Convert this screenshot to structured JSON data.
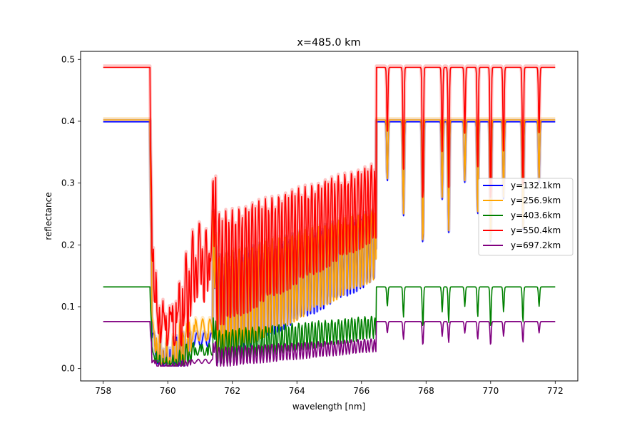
{
  "chart_data": {
    "type": "line",
    "title": "x=485.0 km",
    "xlabel": "wavelength [nm]",
    "ylabel": "reflectance",
    "xlim": [
      757.3,
      772.7
    ],
    "ylim": [
      -0.02,
      0.513
    ],
    "xticks": [
      758,
      760,
      762,
      764,
      766,
      768,
      770,
      772
    ],
    "yticks": [
      0.0,
      0.1,
      0.2,
      0.3,
      0.4,
      0.5
    ],
    "xtick_labels": [
      "758",
      "760",
      "762",
      "764",
      "766",
      "768",
      "770",
      "772"
    ],
    "ytick_labels": [
      "0.0",
      "0.1",
      "0.2",
      "0.3",
      "0.4",
      "0.5"
    ],
    "grid": false,
    "legend_position": "center-right",
    "series": [
      {
        "name": "y=132.1km",
        "color": "#0000ff",
        "continuum": 0.399,
        "core_fraction": 0.05,
        "band_offset": 0.0,
        "shade": true
      },
      {
        "name": "y=256.9km",
        "color": "#ffa500",
        "continuum": 0.402,
        "core_fraction": 0.08,
        "band_offset": 0.35,
        "shade": true
      },
      {
        "name": "y=403.6km",
        "color": "#008000",
        "continuum": 0.132,
        "core_fraction": 0.15,
        "band_offset": 0.7,
        "shade": false
      },
      {
        "name": "y=550.4km",
        "color": "#ff0000",
        "continuum": 0.487,
        "core_fraction": 0.42,
        "band_offset": 1.1,
        "shade": true
      },
      {
        "name": "y=697.2km",
        "color": "#800080",
        "continuum": 0.076,
        "core_fraction": 0.08,
        "band_offset": 1.5,
        "shade": false
      }
    ],
    "absorption_edge_nm": 759.5,
    "band_end_nm": 766.4,
    "weak_lines_nm": [
      766.8,
      767.3,
      767.9,
      768.5,
      768.7,
      769.2,
      769.6,
      770.0,
      770.4,
      771.0,
      771.5
    ]
  }
}
